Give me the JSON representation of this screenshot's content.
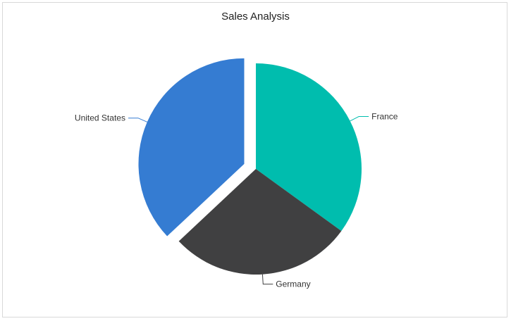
{
  "chart_data": {
    "type": "pie",
    "title": "Sales Analysis",
    "slices": [
      {
        "label": "France",
        "value": 35,
        "color": "#00bdae"
      },
      {
        "label": "Germany",
        "value": 28,
        "color": "#404041"
      },
      {
        "label": "United States",
        "value": 37,
        "color": "#357cd2",
        "exploded": true
      }
    ],
    "legend": "none",
    "data_labels": "outside-with-connectors"
  }
}
